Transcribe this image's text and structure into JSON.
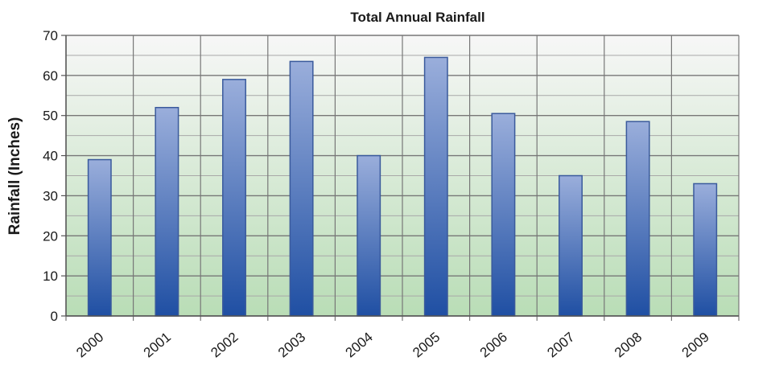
{
  "chart_data": {
    "type": "bar",
    "title": "Total Annual Rainfall",
    "xlabel": "",
    "ylabel": "Rainfall (Inches)",
    "categories": [
      "2000",
      "2001",
      "2002",
      "2003",
      "2004",
      "2005",
      "2006",
      "2007",
      "2008",
      "2009"
    ],
    "values": [
      39,
      52,
      59,
      63.5,
      40,
      64.5,
      50.5,
      35,
      48.5,
      33
    ],
    "ylim": [
      0,
      70
    ],
    "yticks": [
      "0",
      "10",
      "20",
      "30",
      "40",
      "50",
      "60",
      "70"
    ],
    "grid": true,
    "legend": "none",
    "colors": {
      "bar_top": "#9aaedb",
      "bar_bottom": "#1f4fa3",
      "bar_stroke": "#3a5a9c",
      "plot_bg_top": "#f7f7f7",
      "plot_bg_bottom": "#b9ddb6",
      "grid_major": "#777777",
      "grid_minor": "#a8a8a8"
    }
  }
}
